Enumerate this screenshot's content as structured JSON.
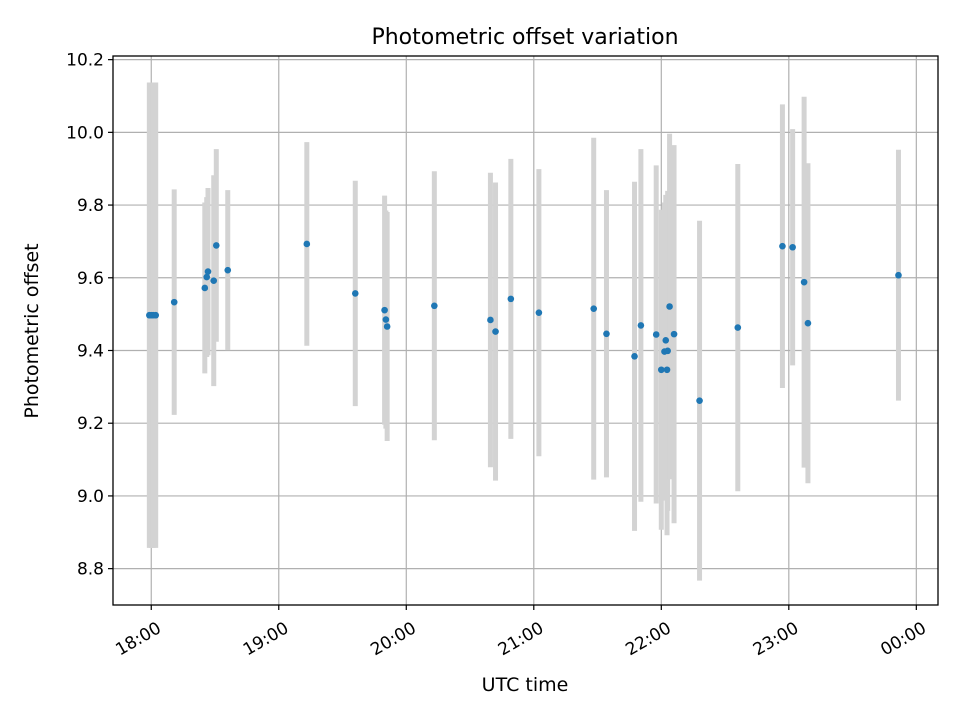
{
  "chart_data": {
    "type": "scatter",
    "title": "Photometric offset variation",
    "xlabel": "UTC time",
    "ylabel": "Photometric offset",
    "x_unit": "UTC hours (hh:mm on axis)",
    "xlim": [
      17.7,
      24.17
    ],
    "ylim": [
      8.7,
      10.21
    ],
    "xticks": [
      {
        "value": 18,
        "label": "18:00"
      },
      {
        "value": 19,
        "label": "19:00"
      },
      {
        "value": 20,
        "label": "20:00"
      },
      {
        "value": 21,
        "label": "21:00"
      },
      {
        "value": 22,
        "label": "22:00"
      },
      {
        "value": 23,
        "label": "23:00"
      },
      {
        "value": 24,
        "label": "00:00"
      }
    ],
    "yticks": [
      {
        "value": 8.8,
        "label": "8.8"
      },
      {
        "value": 9.0,
        "label": "9.0"
      },
      {
        "value": 9.2,
        "label": "9.2"
      },
      {
        "value": 9.4,
        "label": "9.4"
      },
      {
        "value": 9.6,
        "label": "9.6"
      },
      {
        "value": 9.8,
        "label": "9.8"
      },
      {
        "value": 10.0,
        "label": "10.0"
      },
      {
        "value": 10.2,
        "label": "10.2"
      }
    ],
    "grid": true,
    "colors": {
      "marker": "#1f77b4",
      "errorbar": "#d3d3d3",
      "grid": "#b0b0b0"
    },
    "points": [
      {
        "x": 17.985,
        "y": 9.497,
        "yerr": 0.64
      },
      {
        "x": 18.0,
        "y": 9.497,
        "yerr": 0.64
      },
      {
        "x": 18.015,
        "y": 9.497,
        "yerr": 0.64
      },
      {
        "x": 18.035,
        "y": 9.497,
        "yerr": 0.64
      },
      {
        "x": 18.18,
        "y": 9.533,
        "yerr": 0.31
      },
      {
        "x": 18.42,
        "y": 9.572,
        "yerr": 0.235
      },
      {
        "x": 18.435,
        "y": 9.602,
        "yerr": 0.22
      },
      {
        "x": 18.445,
        "y": 9.617,
        "yerr": 0.23
      },
      {
        "x": 18.49,
        "y": 9.592,
        "yerr": 0.29
      },
      {
        "x": 18.51,
        "y": 9.689,
        "yerr": 0.265
      },
      {
        "x": 18.6,
        "y": 9.621,
        "yerr": 0.22
      },
      {
        "x": 19.22,
        "y": 9.693,
        "yerr": 0.28
      },
      {
        "x": 19.6,
        "y": 9.557,
        "yerr": 0.31
      },
      {
        "x": 19.83,
        "y": 9.511,
        "yerr": 0.315
      },
      {
        "x": 19.84,
        "y": 9.485,
        "yerr": 0.3
      },
      {
        "x": 19.85,
        "y": 9.466,
        "yerr": 0.315
      },
      {
        "x": 20.22,
        "y": 9.523,
        "yerr": 0.37
      },
      {
        "x": 20.66,
        "y": 9.484,
        "yerr": 0.405
      },
      {
        "x": 20.7,
        "y": 9.452,
        "yerr": 0.41
      },
      {
        "x": 20.82,
        "y": 9.542,
        "yerr": 0.385
      },
      {
        "x": 21.04,
        "y": 9.504,
        "yerr": 0.395
      },
      {
        "x": 21.47,
        "y": 9.515,
        "yerr": 0.47
      },
      {
        "x": 21.57,
        "y": 9.446,
        "yerr": 0.395
      },
      {
        "x": 21.79,
        "y": 9.384,
        "yerr": 0.48
      },
      {
        "x": 21.84,
        "y": 9.469,
        "yerr": 0.485
      },
      {
        "x": 21.96,
        "y": 9.444,
        "yerr": 0.465
      },
      {
        "x": 22.0,
        "y": 9.347,
        "yerr": 0.44
      },
      {
        "x": 22.025,
        "y": 9.397,
        "yerr": 0.41
      },
      {
        "x": 22.035,
        "y": 9.428,
        "yerr": 0.4
      },
      {
        "x": 22.045,
        "y": 9.347,
        "yerr": 0.455
      },
      {
        "x": 22.05,
        "y": 9.399,
        "yerr": 0.44
      },
      {
        "x": 22.065,
        "y": 9.521,
        "yerr": 0.475
      },
      {
        "x": 22.1,
        "y": 9.445,
        "yerr": 0.52
      },
      {
        "x": 22.3,
        "y": 9.262,
        "yerr": 0.495
      },
      {
        "x": 22.6,
        "y": 9.463,
        "yerr": 0.45
      },
      {
        "x": 22.95,
        "y": 9.687,
        "yerr": 0.39
      },
      {
        "x": 23.03,
        "y": 9.684,
        "yerr": 0.325
      },
      {
        "x": 23.12,
        "y": 9.588,
        "yerr": 0.51
      },
      {
        "x": 23.15,
        "y": 9.475,
        "yerr": 0.44
      },
      {
        "x": 23.86,
        "y": 9.607,
        "yerr": 0.345
      }
    ]
  }
}
